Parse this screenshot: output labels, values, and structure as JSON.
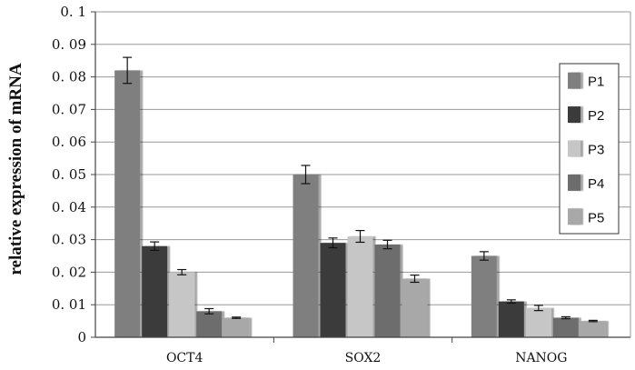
{
  "chart_data": {
    "type": "bar",
    "title": "",
    "xlabel": "",
    "ylabel": "relative expression of mRNA",
    "ylim": [
      0,
      0.1
    ],
    "yticks": [
      "0",
      "0. 01",
      "0. 02",
      "0. 03",
      "0. 04",
      "0. 05",
      "0. 06",
      "0. 07",
      "0. 08",
      "0. 09",
      "0. 1"
    ],
    "categories": [
      "OCT4",
      "SOX2",
      "NANOG"
    ],
    "grid": "horizontal",
    "legend_position": "right",
    "series": [
      {
        "name": "P1",
        "color": "#7f7f7f",
        "values": [
          0.082,
          0.05,
          0.025
        ],
        "errors": [
          0.004,
          0.0028,
          0.0013
        ]
      },
      {
        "name": "P2",
        "color": "#3a3a3a",
        "values": [
          0.028,
          0.029,
          0.011
        ],
        "errors": [
          0.0013,
          0.0015,
          0.0005
        ]
      },
      {
        "name": "P3",
        "color": "#c6c6c6",
        "values": [
          0.02,
          0.031,
          0.009
        ],
        "errors": [
          0.0008,
          0.0018,
          0.0008
        ]
      },
      {
        "name": "P4",
        "color": "#6d6d6d",
        "values": [
          0.008,
          0.0285,
          0.006
        ],
        "errors": [
          0.0008,
          0.0013,
          0.0003
        ]
      },
      {
        "name": "P5",
        "color": "#a8a8a8",
        "values": [
          0.006,
          0.018,
          0.005
        ],
        "errors": [
          0.0002,
          0.0011,
          0.0002
        ]
      }
    ]
  }
}
